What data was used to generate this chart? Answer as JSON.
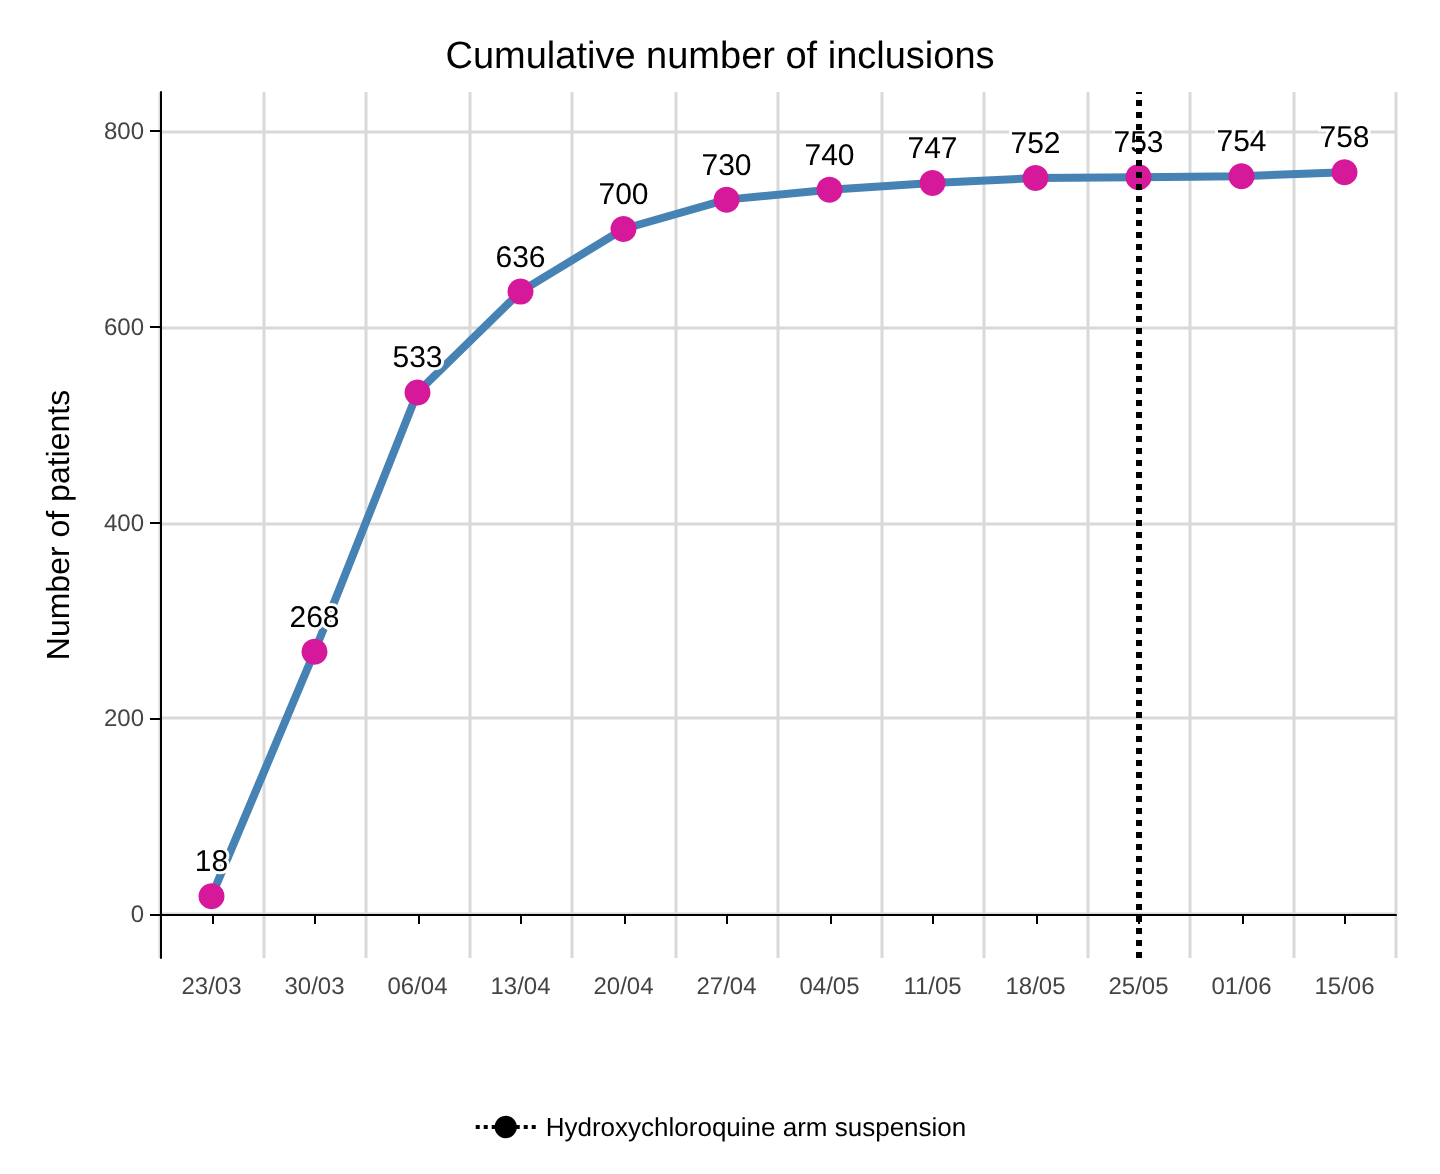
{
  "chart_data": {
    "type": "line",
    "title": "Cumulative number of inclusions",
    "ylabel": "Number of patients",
    "categories": [
      "23/03",
      "30/03",
      "06/04",
      "13/04",
      "20/04",
      "27/04",
      "04/05",
      "11/05",
      "18/05",
      "25/05",
      "01/06",
      "15/06"
    ],
    "series": [
      {
        "color": "#4682b4",
        "colors": [
          "#d6199a",
          "#d6199a",
          "#d6199a",
          "#d6199a",
          "#d6199a",
          "#d6199a",
          "#d6199a",
          "#d6199a",
          "#d6199a",
          "#d6199a",
          "#d6199a",
          "#d6199a"
        ],
        "values": [
          18,
          268,
          533,
          636,
          700,
          730,
          740,
          747,
          752,
          753,
          754,
          758
        ]
      }
    ],
    "marker": "circle",
    "data_labels": true,
    "ylim": [
      -45,
      840
    ],
    "yticks": [
      0,
      200,
      400,
      600,
      800
    ],
    "grid": true,
    "legend": "bottom",
    "ref_lines": [
      {
        "axis": "x",
        "value": "25/05",
        "label": "Hydroxychloroquine arm suspension",
        "color": "#000000",
        "line_style": "dotted"
      }
    ]
  }
}
